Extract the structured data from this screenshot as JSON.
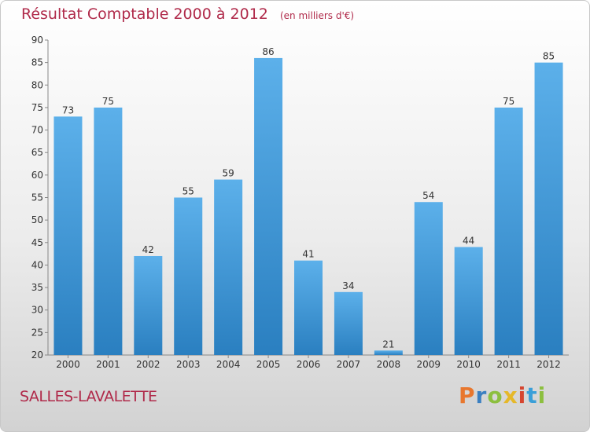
{
  "chart_data": {
    "type": "bar",
    "title": "Résultat Comptable 2000 à 2012",
    "subtitle": "(en milliers d'€)",
    "categories": [
      "2000",
      "2001",
      "2002",
      "2003",
      "2004",
      "2005",
      "2006",
      "2007",
      "2008",
      "2009",
      "2010",
      "2011",
      "2012"
    ],
    "values": [
      73,
      75,
      42,
      55,
      59,
      86,
      41,
      34,
      21,
      54,
      44,
      75,
      85
    ],
    "ylim": [
      20,
      90
    ],
    "yticks": [
      20,
      25,
      30,
      35,
      40,
      45,
      50,
      55,
      60,
      65,
      70,
      75,
      80,
      85,
      90
    ],
    "grid": false,
    "bar_color": "#3f97d6"
  },
  "place_name": "SALLES-LAVALETTE",
  "logo": {
    "text": "Proxiti",
    "letter_colors": [
      "#e8772e",
      "#3a7fc1",
      "#8cbf3f",
      "#e5b829",
      "#d6452f",
      "#3a9fd8",
      "#8cbf3f"
    ]
  }
}
